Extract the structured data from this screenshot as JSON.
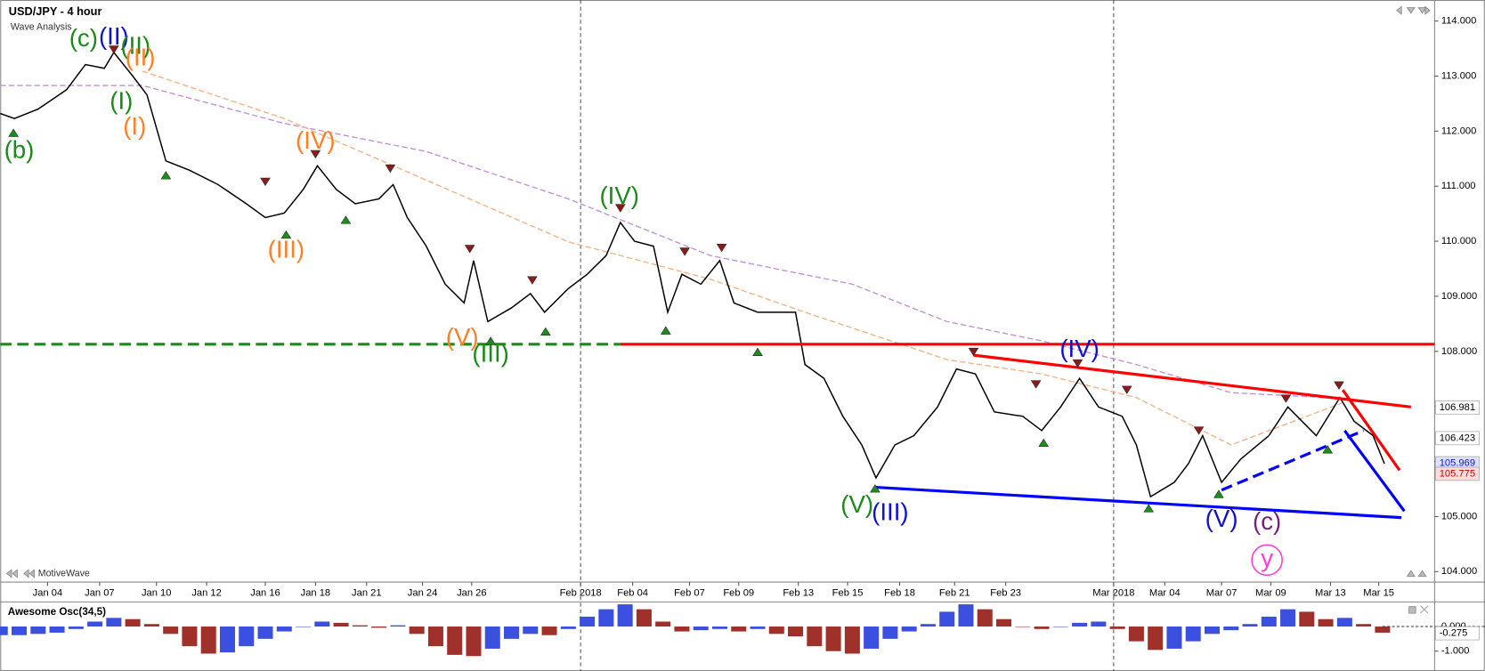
{
  "chart_data": [
    {
      "type": "line",
      "title": "USD/JPY - 4 hour",
      "subtitle": "Wave Analysis",
      "watermark": "MotiveWave",
      "xlim": [
        0,
        1515
      ],
      "ylim": [
        103.81,
        114.33
      ],
      "yticks": [
        {
          "value": 104,
          "label": "104.000"
        },
        {
          "value": 105,
          "label": "105.000"
        },
        {
          "value": 106,
          "label": "106.000"
        },
        {
          "value": 107,
          "label": "107.000"
        },
        {
          "value": 108,
          "label": "108.000"
        },
        {
          "value": 109,
          "label": "109.000"
        },
        {
          "value": 110,
          "label": "110.000"
        },
        {
          "value": 111,
          "label": "111.000"
        },
        {
          "value": 112,
          "label": "112.000"
        },
        {
          "value": 113,
          "label": "113.000"
        },
        {
          "value": 114,
          "label": "114.000"
        }
      ],
      "xticks": [
        {
          "value": 50,
          "label": "Jan 04"
        },
        {
          "value": 105,
          "label": "Jan 07"
        },
        {
          "value": 165,
          "label": "Jan 10"
        },
        {
          "value": 218,
          "label": "Jan 12"
        },
        {
          "value": 280,
          "label": "Jan 16"
        },
        {
          "value": 333,
          "label": "Jan 18"
        },
        {
          "value": 387,
          "label": "Jan 21"
        },
        {
          "value": 446,
          "label": "Jan 24"
        },
        {
          "value": 498,
          "label": "Jan 26"
        },
        {
          "value": 613,
          "label": "Feb 2018"
        },
        {
          "value": 668,
          "label": "Feb 04"
        },
        {
          "value": 728,
          "label": "Feb 07"
        },
        {
          "value": 780,
          "label": "Feb 09"
        },
        {
          "value": 843,
          "label": "Feb 13"
        },
        {
          "value": 895,
          "label": "Feb 15"
        },
        {
          "value": 950,
          "label": "Feb 18"
        },
        {
          "value": 1008,
          "label": "Feb 21"
        },
        {
          "value": 1062,
          "label": "Feb 23"
        },
        {
          "value": 1176,
          "label": "Mar 2018"
        },
        {
          "value": 1230,
          "label": "Mar 04"
        },
        {
          "value": 1290,
          "label": "Mar 07"
        },
        {
          "value": 1342,
          "label": "Mar 09"
        },
        {
          "value": 1405,
          "label": "Mar 13"
        },
        {
          "value": 1456,
          "label": "Mar 15"
        }
      ],
      "month_lines": [
        9,
        18
      ],
      "color": "#000000",
      "x": [
        0,
        15,
        40,
        70,
        90,
        110,
        120,
        140,
        155,
        175,
        200,
        230,
        260,
        280,
        300,
        320,
        335,
        355,
        375,
        400,
        415,
        430,
        450,
        470,
        490,
        500,
        515,
        540,
        560,
        575,
        600,
        620,
        640,
        655,
        670,
        690,
        705,
        720,
        740,
        760,
        775,
        800,
        820,
        840,
        850,
        870,
        890,
        910,
        925,
        945,
        965,
        990,
        1010,
        1030,
        1050,
        1080,
        1100,
        1120,
        1140,
        1160,
        1185,
        1200,
        1215,
        1240,
        1255,
        1270,
        1290,
        1310,
        1340,
        1360,
        1390,
        1415,
        1430,
        1450,
        1462
      ],
      "values": [
        112.32,
        112.23,
        112.4,
        112.75,
        113.21,
        113.14,
        113.43,
        113.0,
        112.66,
        111.46,
        111.29,
        111.03,
        110.68,
        110.43,
        110.51,
        110.94,
        111.37,
        110.94,
        110.68,
        110.77,
        111.03,
        110.43,
        109.91,
        109.22,
        108.88,
        109.65,
        108.54,
        108.79,
        109.05,
        108.71,
        109.14,
        109.4,
        109.74,
        110.34,
        110.0,
        109.91,
        108.71,
        109.4,
        109.22,
        109.65,
        108.88,
        108.71,
        108.71,
        108.71,
        107.76,
        107.51,
        106.82,
        106.3,
        105.7,
        106.3,
        106.47,
        106.99,
        107.68,
        107.59,
        106.9,
        106.82,
        106.56,
        106.99,
        107.51,
        106.99,
        106.82,
        106.3,
        105.36,
        105.62,
        105.96,
        106.47,
        105.62,
        106.04,
        106.47,
        106.99,
        106.47,
        107.16,
        106.73,
        106.47,
        105.96
      ],
      "moving_averages": [
        {
          "color": "#c58fd6",
          "x": [
            0,
            150,
            300,
            450,
            600,
            750,
            900,
            1000,
            1100,
            1200,
            1300,
            1400,
            1490
          ],
          "values": [
            112.83,
            112.83,
            112.14,
            111.63,
            110.77,
            109.74,
            109.22,
            108.54,
            108.19,
            107.76,
            107.25,
            107.16,
            106.99
          ]
        },
        {
          "color": "#f4b183",
          "x": [
            150,
            300,
            450,
            600,
            750,
            850,
            1000,
            1100,
            1200,
            1300,
            1420
          ],
          "values": [
            113.09,
            112.23,
            111.11,
            109.99,
            109.31,
            108.71,
            107.85,
            107.59,
            107.16,
            106.3,
            107.08
          ]
        }
      ],
      "lines": [
        {
          "color": "#1a8a1a",
          "style": "dashed",
          "x": [
            0,
            655
          ],
          "values": [
            108.13,
            108.13
          ]
        },
        {
          "color": "#ff0000",
          "style": "solid",
          "x": [
            655,
            1515
          ],
          "values": [
            108.13,
            108.13
          ]
        },
        {
          "color": "#ff0000",
          "style": "solid",
          "x": [
            1028,
            1490
          ],
          "values": [
            107.93,
            106.99
          ]
        },
        {
          "color": "#0000ff",
          "style": "solid",
          "x": [
            925,
            1480
          ],
          "values": [
            105.53,
            104.98
          ]
        },
        {
          "color": "#0000ff",
          "style": "dashed",
          "x": [
            1290,
            1440
          ],
          "values": [
            105.48,
            106.56
          ]
        },
        {
          "color": "#ff0000",
          "style": "solid",
          "x": [
            1418,
            1478
          ],
          "values": [
            107.3,
            105.84
          ]
        },
        {
          "color": "#0000ff",
          "style": "solid",
          "x": [
            1420,
            1483
          ],
          "values": [
            106.56,
            105.1
          ]
        }
      ],
      "pivots_high": {
        "color": "#8b1a1a",
        "x": [
          120,
          280,
          333,
          412,
          496,
          562,
          655,
          723,
          762,
          1028,
          1138,
          1094,
          1190,
          1266,
          1358,
          1414
        ],
        "values": [
          113.48,
          111.08,
          111.58,
          111.32,
          109.86,
          109.29,
          110.6,
          109.81,
          109.88,
          107.99,
          107.78,
          107.4,
          107.3,
          106.56,
          107.14,
          107.38
        ]
      },
      "pivots_low": {
        "color": "#1f8a1f",
        "x": [
          14,
          175,
          302,
          365,
          518,
          576,
          703,
          800,
          924,
          1102,
          1213,
          1287,
          1402
        ],
        "values": [
          111.97,
          111.2,
          110.12,
          110.39,
          108.19,
          108.36,
          108.38,
          107.99,
          105.51,
          106.34,
          105.15,
          105.41,
          106.22
        ]
      },
      "annotations": [
        {
          "text": "(b)",
          "color": "#1a8a1a",
          "x": 20,
          "y": 111.63
        },
        {
          "text": "(c)",
          "color": "#1a8a1a",
          "x": 88,
          "y": 113.66
        },
        {
          "text": "(II)",
          "color": "#1010d0",
          "x": 120,
          "y": 113.69
        },
        {
          "text": "(II)",
          "color": "#1a8a1a",
          "x": 143,
          "y": 113.52
        },
        {
          "text": "(I)",
          "color": "#1a8a1a",
          "x": 128,
          "y": 112.52
        },
        {
          "text": "(II)",
          "color": "#ff7f27",
          "x": 148,
          "y": 113.31
        },
        {
          "text": "(I)",
          "color": "#ff7f27",
          "x": 142,
          "y": 112.06
        },
        {
          "text": "(IV)",
          "color": "#ff7f27",
          "x": 333,
          "y": 111.8
        },
        {
          "text": "(III)",
          "color": "#ff7f27",
          "x": 302,
          "y": 109.82
        },
        {
          "text": "(V)",
          "color": "#ff7f27",
          "x": 488,
          "y": 108.23
        },
        {
          "text": "(III)",
          "color": "#1a8a1a",
          "x": 518,
          "y": 107.93
        },
        {
          "text": "(IV)",
          "color": "#1a8a1a",
          "x": 654,
          "y": 110.8
        },
        {
          "text": "(V)",
          "color": "#1a8a1a",
          "x": 905,
          "y": 105.19
        },
        {
          "text": "(III)",
          "color": "#1010d0",
          "x": 940,
          "y": 105.05
        },
        {
          "text": "(IV)",
          "color": "#1010d0",
          "x": 1140,
          "y": 108.02
        },
        {
          "text": "(V)",
          "color": "#1010d0",
          "x": 1290,
          "y": 104.93
        },
        {
          "text": "(c)",
          "color": "#7b1f7b",
          "x": 1338,
          "y": 104.88
        },
        {
          "text": "y",
          "color": "#ff3fd0",
          "x": 1338,
          "y": 104.21,
          "circled": true
        }
      ],
      "price_tags": [
        {
          "value": 106.981,
          "color": "#000000",
          "background": "#ffffff"
        },
        {
          "value": 106.423,
          "color": "#000000",
          "background": "#ffffff"
        },
        {
          "value": 105.969,
          "color": "#1010d0",
          "background": "#dbe3fb"
        },
        {
          "value": 105.775,
          "color": "#c00000",
          "background": "#fbdcdc"
        }
      ]
    },
    {
      "type": "bar",
      "title": "Awesome Osc(34,5)",
      "xlim": [
        0,
        1515
      ],
      "ylim": [
        -1.69,
        0.96
      ],
      "yticks": [
        {
          "value": 0,
          "label": "0.000"
        },
        {
          "value": -1,
          "label": "-1.000"
        }
      ],
      "colors": {
        "up": "#3b4fe0",
        "down": "#a0302a"
      },
      "x": [
        0,
        20,
        40,
        60,
        80,
        100,
        120,
        140,
        160,
        180,
        200,
        220,
        240,
        260,
        280,
        300,
        320,
        340,
        360,
        380,
        400,
        420,
        440,
        460,
        480,
        500,
        520,
        540,
        560,
        580,
        600,
        620,
        640,
        660,
        680,
        700,
        720,
        740,
        760,
        780,
        800,
        820,
        840,
        860,
        880,
        900,
        920,
        940,
        960,
        980,
        1000,
        1020,
        1040,
        1060,
        1080,
        1100,
        1120,
        1140,
        1160,
        1180,
        1200,
        1220,
        1240,
        1260,
        1280,
        1300,
        1320,
        1340,
        1360,
        1380,
        1400,
        1420,
        1440,
        1460
      ],
      "values": [
        -0.35,
        -0.35,
        -0.3,
        -0.25,
        -0.1,
        0.2,
        0.35,
        0.3,
        0.1,
        -0.3,
        -0.8,
        -1.1,
        -1.05,
        -0.8,
        -0.5,
        -0.2,
        0.0,
        0.2,
        0.15,
        0.05,
        -0.05,
        0.05,
        -0.3,
        -0.8,
        -1.15,
        -1.2,
        -0.9,
        -0.5,
        -0.3,
        -0.35,
        -0.1,
        0.4,
        0.7,
        0.9,
        0.7,
        0.2,
        -0.2,
        -0.15,
        -0.1,
        -0.2,
        -0.1,
        -0.3,
        -0.4,
        -0.8,
        -1.0,
        -1.1,
        -0.9,
        -0.5,
        -0.2,
        0.1,
        0.6,
        0.9,
        0.7,
        0.3,
        0.0,
        -0.1,
        0.0,
        0.15,
        0.2,
        -0.1,
        -0.6,
        -0.95,
        -0.9,
        -0.6,
        -0.3,
        -0.15,
        0.1,
        0.4,
        0.7,
        0.6,
        0.3,
        0.35,
        0.1,
        -0.25
      ],
      "price_tags": [
        {
          "value": -0.275,
          "color": "#000000",
          "background": "#ffffff"
        }
      ]
    }
  ]
}
